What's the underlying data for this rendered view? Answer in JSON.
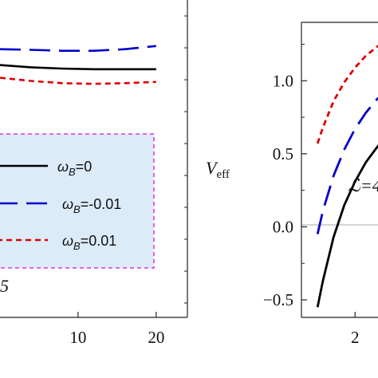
{
  "chart_data": [
    {
      "type": "line",
      "panel": "left",
      "xlim": [
        0,
        24
      ],
      "ylim": [
        0,
        1
      ],
      "x_ticks": [
        "10",
        "20"
      ],
      "legend_placement": "bottom-left",
      "series": [
        {
          "name": "ωB=0",
          "legend_label": "ωB=0",
          "color": "#000000",
          "dash": "solid",
          "x": [
            0,
            4,
            8,
            12,
            16,
            20
          ],
          "y": [
            0.795,
            0.788,
            0.784,
            0.782,
            0.782,
            0.782
          ]
        },
        {
          "name": "ωB=-0.01",
          "legend_label": "ωB=-0.01",
          "color": "#0000cc",
          "dash": "long-dash",
          "x": [
            0,
            4,
            8,
            12,
            16,
            20
          ],
          "y": [
            0.845,
            0.843,
            0.84,
            0.84,
            0.845,
            0.855
          ]
        },
        {
          "name": "ωB=0.01",
          "legend_label": "ωB=0.01",
          "color": "#dd0000",
          "dash": "short-dash",
          "x": [
            0,
            4,
            8,
            12,
            16,
            20
          ],
          "y": [
            0.755,
            0.745,
            0.738,
            0.736,
            0.738,
            0.742
          ]
        }
      ],
      "annotation": "5"
    },
    {
      "type": "line",
      "panel": "right",
      "xlim": [
        1.5,
        3
      ],
      "ylim": [
        -0.62,
        1.4
      ],
      "x_ticks": [
        {
          "value": 2,
          "label": "2"
        }
      ],
      "y_ticks": [
        {
          "value": -0.5,
          "label": "−0.5"
        },
        {
          "value": 0.0,
          "label": "0.0"
        },
        {
          "value": 0.5,
          "label": "0.5"
        },
        {
          "value": 1.0,
          "label": "1.0"
        }
      ],
      "ylabel": "V",
      "ylabel_sub": "eff",
      "annotation": "ℒ=4",
      "series": [
        {
          "name": "ωB=0",
          "color": "#000000",
          "dash": "solid",
          "x": [
            1.65,
            1.7,
            1.8,
            1.9,
            2.0,
            2.1,
            2.2,
            2.3,
            2.4,
            2.5,
            2.6
          ],
          "y": [
            -0.55,
            -0.37,
            -0.07,
            0.15,
            0.31,
            0.44,
            0.54,
            0.63,
            0.7,
            0.76,
            0.81
          ]
        },
        {
          "name": "ωB=-0.01",
          "color": "#0000cc",
          "dash": "long-dash",
          "x": [
            1.65,
            1.7,
            1.8,
            1.9,
            2.0,
            2.1,
            2.2,
            2.3,
            2.4,
            2.5,
            2.6
          ],
          "y": [
            -0.05,
            0.11,
            0.35,
            0.53,
            0.67,
            0.78,
            0.87,
            0.94,
            1.0,
            1.05,
            1.09
          ]
        },
        {
          "name": "ωB=0.01",
          "color": "#dd0000",
          "dash": "short-dash",
          "x": [
            1.65,
            1.7,
            1.8,
            1.9,
            2.0,
            2.1,
            2.2,
            2.3,
            2.4,
            2.5,
            2.6
          ],
          "y": [
            0.57,
            0.68,
            0.86,
            0.99,
            1.09,
            1.17,
            1.23,
            1.28,
            1.32,
            1.35,
            1.38
          ]
        }
      ]
    }
  ],
  "colors": {
    "legend_fill": "#dcebf8",
    "legend_border": "#dd33dd",
    "zero_line": "#aaaaaa"
  }
}
